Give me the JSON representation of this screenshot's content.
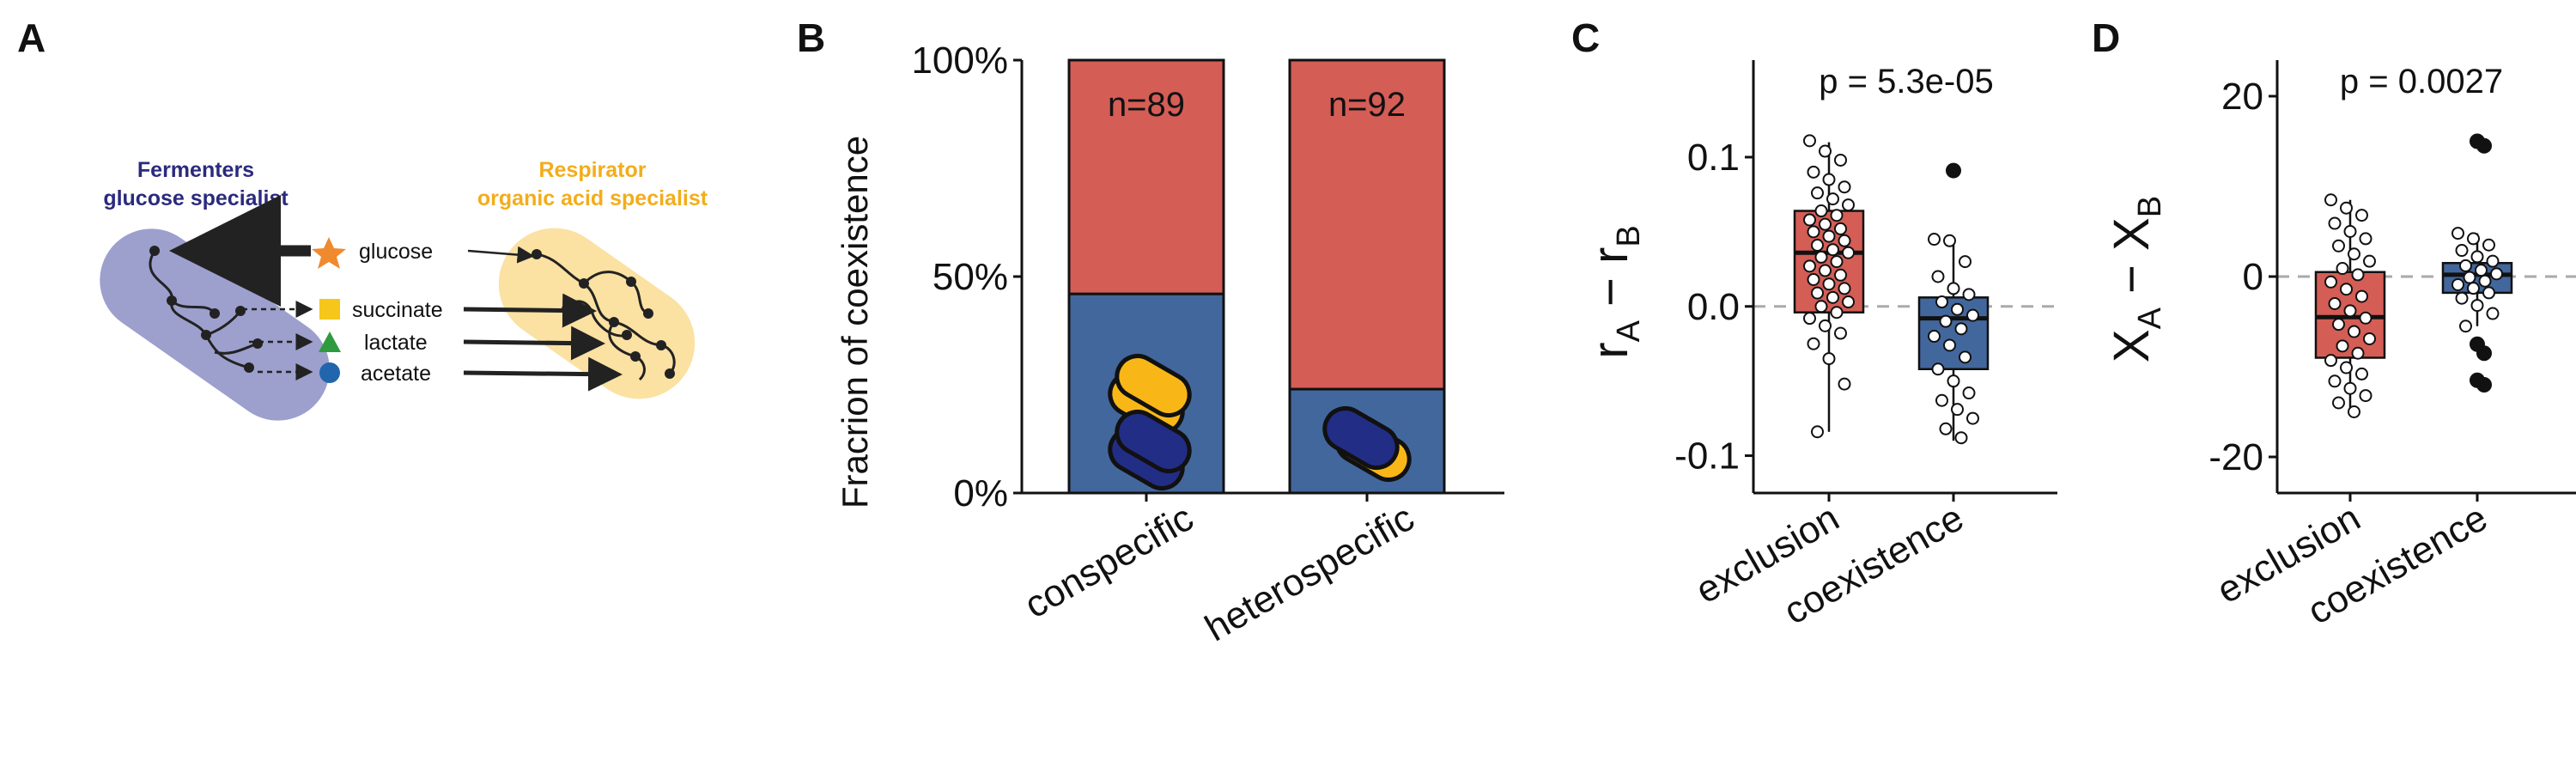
{
  "panels": {
    "a": {
      "letter": "A"
    },
    "b": {
      "letter": "B"
    },
    "c": {
      "letter": "C"
    },
    "d": {
      "letter": "D"
    }
  },
  "diagram": {
    "fermenter_title_1": "Fermenters",
    "fermenter_title_2": "glucose specialist",
    "respirator_title_1": "Respirator",
    "respirator_title_2": "organic acid specialist",
    "metabolites": [
      {
        "name": "glucose",
        "marker": "star-icon",
        "color": "#ef8a2f"
      },
      {
        "name": "succinate",
        "marker": "square-icon",
        "color": "#f6c61a"
      },
      {
        "name": "lactate",
        "marker": "triangle-icon",
        "color": "#2f9a3e"
      },
      {
        "name": "acetate",
        "marker": "circle-icon",
        "color": "#2166ac"
      }
    ],
    "colors": {
      "fermenter": "#9d9fcd",
      "respirator": "#fbe1a2"
    }
  },
  "colors": {
    "exclusion": "#d45d56",
    "coexistence": "#42679c",
    "yellow_cell": "#f8b717",
    "navy_cell": "#222d86"
  },
  "chart_data": [
    {
      "type": "bar",
      "stacked": true,
      "ylabel": "Fracrion of coexistence",
      "ytick_labels": [
        "0%",
        "50%",
        "100%"
      ],
      "ylim": [
        0,
        1
      ],
      "categories": [
        "conspecific",
        "heterospecific"
      ],
      "counts": [
        "n=89",
        "n=92"
      ],
      "series": [
        {
          "values": [
            0.46,
            0.24
          ],
          "color": "#42679c"
        },
        {
          "values": [
            0.54,
            0.76
          ],
          "color": "#d45d56"
        }
      ]
    },
    {
      "type": "scatter",
      "subtype": "boxplot",
      "annotation": "p = 5.3e-05",
      "ylabel_main": "r",
      "ylabel_sub_a": "A",
      "ylabel_sub_b": "B",
      "ylabel_op": " − ",
      "ylim": [
        -0.125,
        0.165
      ],
      "yticks": [
        -0.1,
        0.0,
        0.1
      ],
      "ytick_labels": [
        "-0.1",
        "0.0",
        "0.1"
      ],
      "reference_line": 0,
      "categories": [
        "exclusion",
        "coexistence"
      ],
      "boxes": [
        {
          "q1": -0.004,
          "median": 0.036,
          "q3": 0.064,
          "whisker_low": -0.084,
          "whisker_high": 0.11,
          "color": "#d45d56"
        },
        {
          "q1": -0.042,
          "median": -0.008,
          "q3": 0.006,
          "whisker_low": -0.09,
          "whisker_high": 0.045,
          "color": "#42679c"
        }
      ],
      "points": [
        [
          0.111,
          0.104,
          0.098,
          0.09,
          0.085,
          0.08,
          0.076,
          0.072,
          0.068,
          0.064,
          0.061,
          0.058,
          0.055,
          0.052,
          0.05,
          0.047,
          0.044,
          0.041,
          0.038,
          0.036,
          0.033,
          0.03,
          0.027,
          0.024,
          0.021,
          0.018,
          0.015,
          0.012,
          0.009,
          0.006,
          0.003,
          0.0,
          -0.004,
          -0.008,
          -0.013,
          -0.018,
          -0.025,
          -0.035,
          -0.052,
          -0.084
        ],
        [
          0.045,
          0.044,
          0.03,
          0.02,
          0.012,
          0.008,
          0.003,
          -0.002,
          -0.006,
          -0.01,
          -0.015,
          -0.02,
          -0.026,
          -0.034,
          -0.042,
          -0.05,
          -0.058,
          -0.063,
          -0.069,
          -0.075,
          -0.082,
          -0.088
        ]
      ],
      "outliers": [
        [],
        [
          0.091
        ]
      ]
    },
    {
      "type": "scatter",
      "subtype": "boxplot",
      "annotation": "p = 0.0027",
      "ylabel_main": "X",
      "ylabel_sub_a": "A",
      "ylabel_sub_b": "B",
      "ylabel_op": " − ",
      "ylim": [
        -24,
        24
      ],
      "yticks": [
        -20,
        0,
        20
      ],
      "ytick_labels": [
        "-20",
        "0",
        "20"
      ],
      "reference_line": 0,
      "categories": [
        "exclusion",
        "coexistence"
      ],
      "boxes": [
        {
          "q1": -9,
          "median": -4.5,
          "q3": 0.5,
          "whisker_low": -15,
          "whisker_high": 8.5,
          "color": "#d45d56"
        },
        {
          "q1": -1.8,
          "median": 0.2,
          "q3": 1.5,
          "whisker_low": -5.5,
          "whisker_high": 4.8,
          "color": "#42679c"
        }
      ],
      "points": [
        [
          8.5,
          7.6,
          6.8,
          5.9,
          5.0,
          4.2,
          3.4,
          2.5,
          1.7,
          0.9,
          0.2,
          -0.6,
          -1.4,
          -2.2,
          -3.0,
          -3.8,
          -4.6,
          -5.3,
          -6.1,
          -6.9,
          -7.7,
          -8.5,
          -9.3,
          -10.1,
          -10.8,
          -11.6,
          -12.4,
          -13.2,
          -14.0,
          -15.0
        ],
        [
          4.8,
          4.2,
          3.5,
          2.9,
          2.2,
          1.7,
          1.2,
          0.7,
          0.3,
          -0.1,
          -0.5,
          -0.9,
          -1.3,
          -1.8,
          -2.4,
          -3.2,
          -4.1,
          -5.5
        ]
      ],
      "outliers": [
        [],
        [
          15,
          14.5,
          -7.5,
          -8.5,
          -11.5,
          -12
        ]
      ]
    }
  ]
}
